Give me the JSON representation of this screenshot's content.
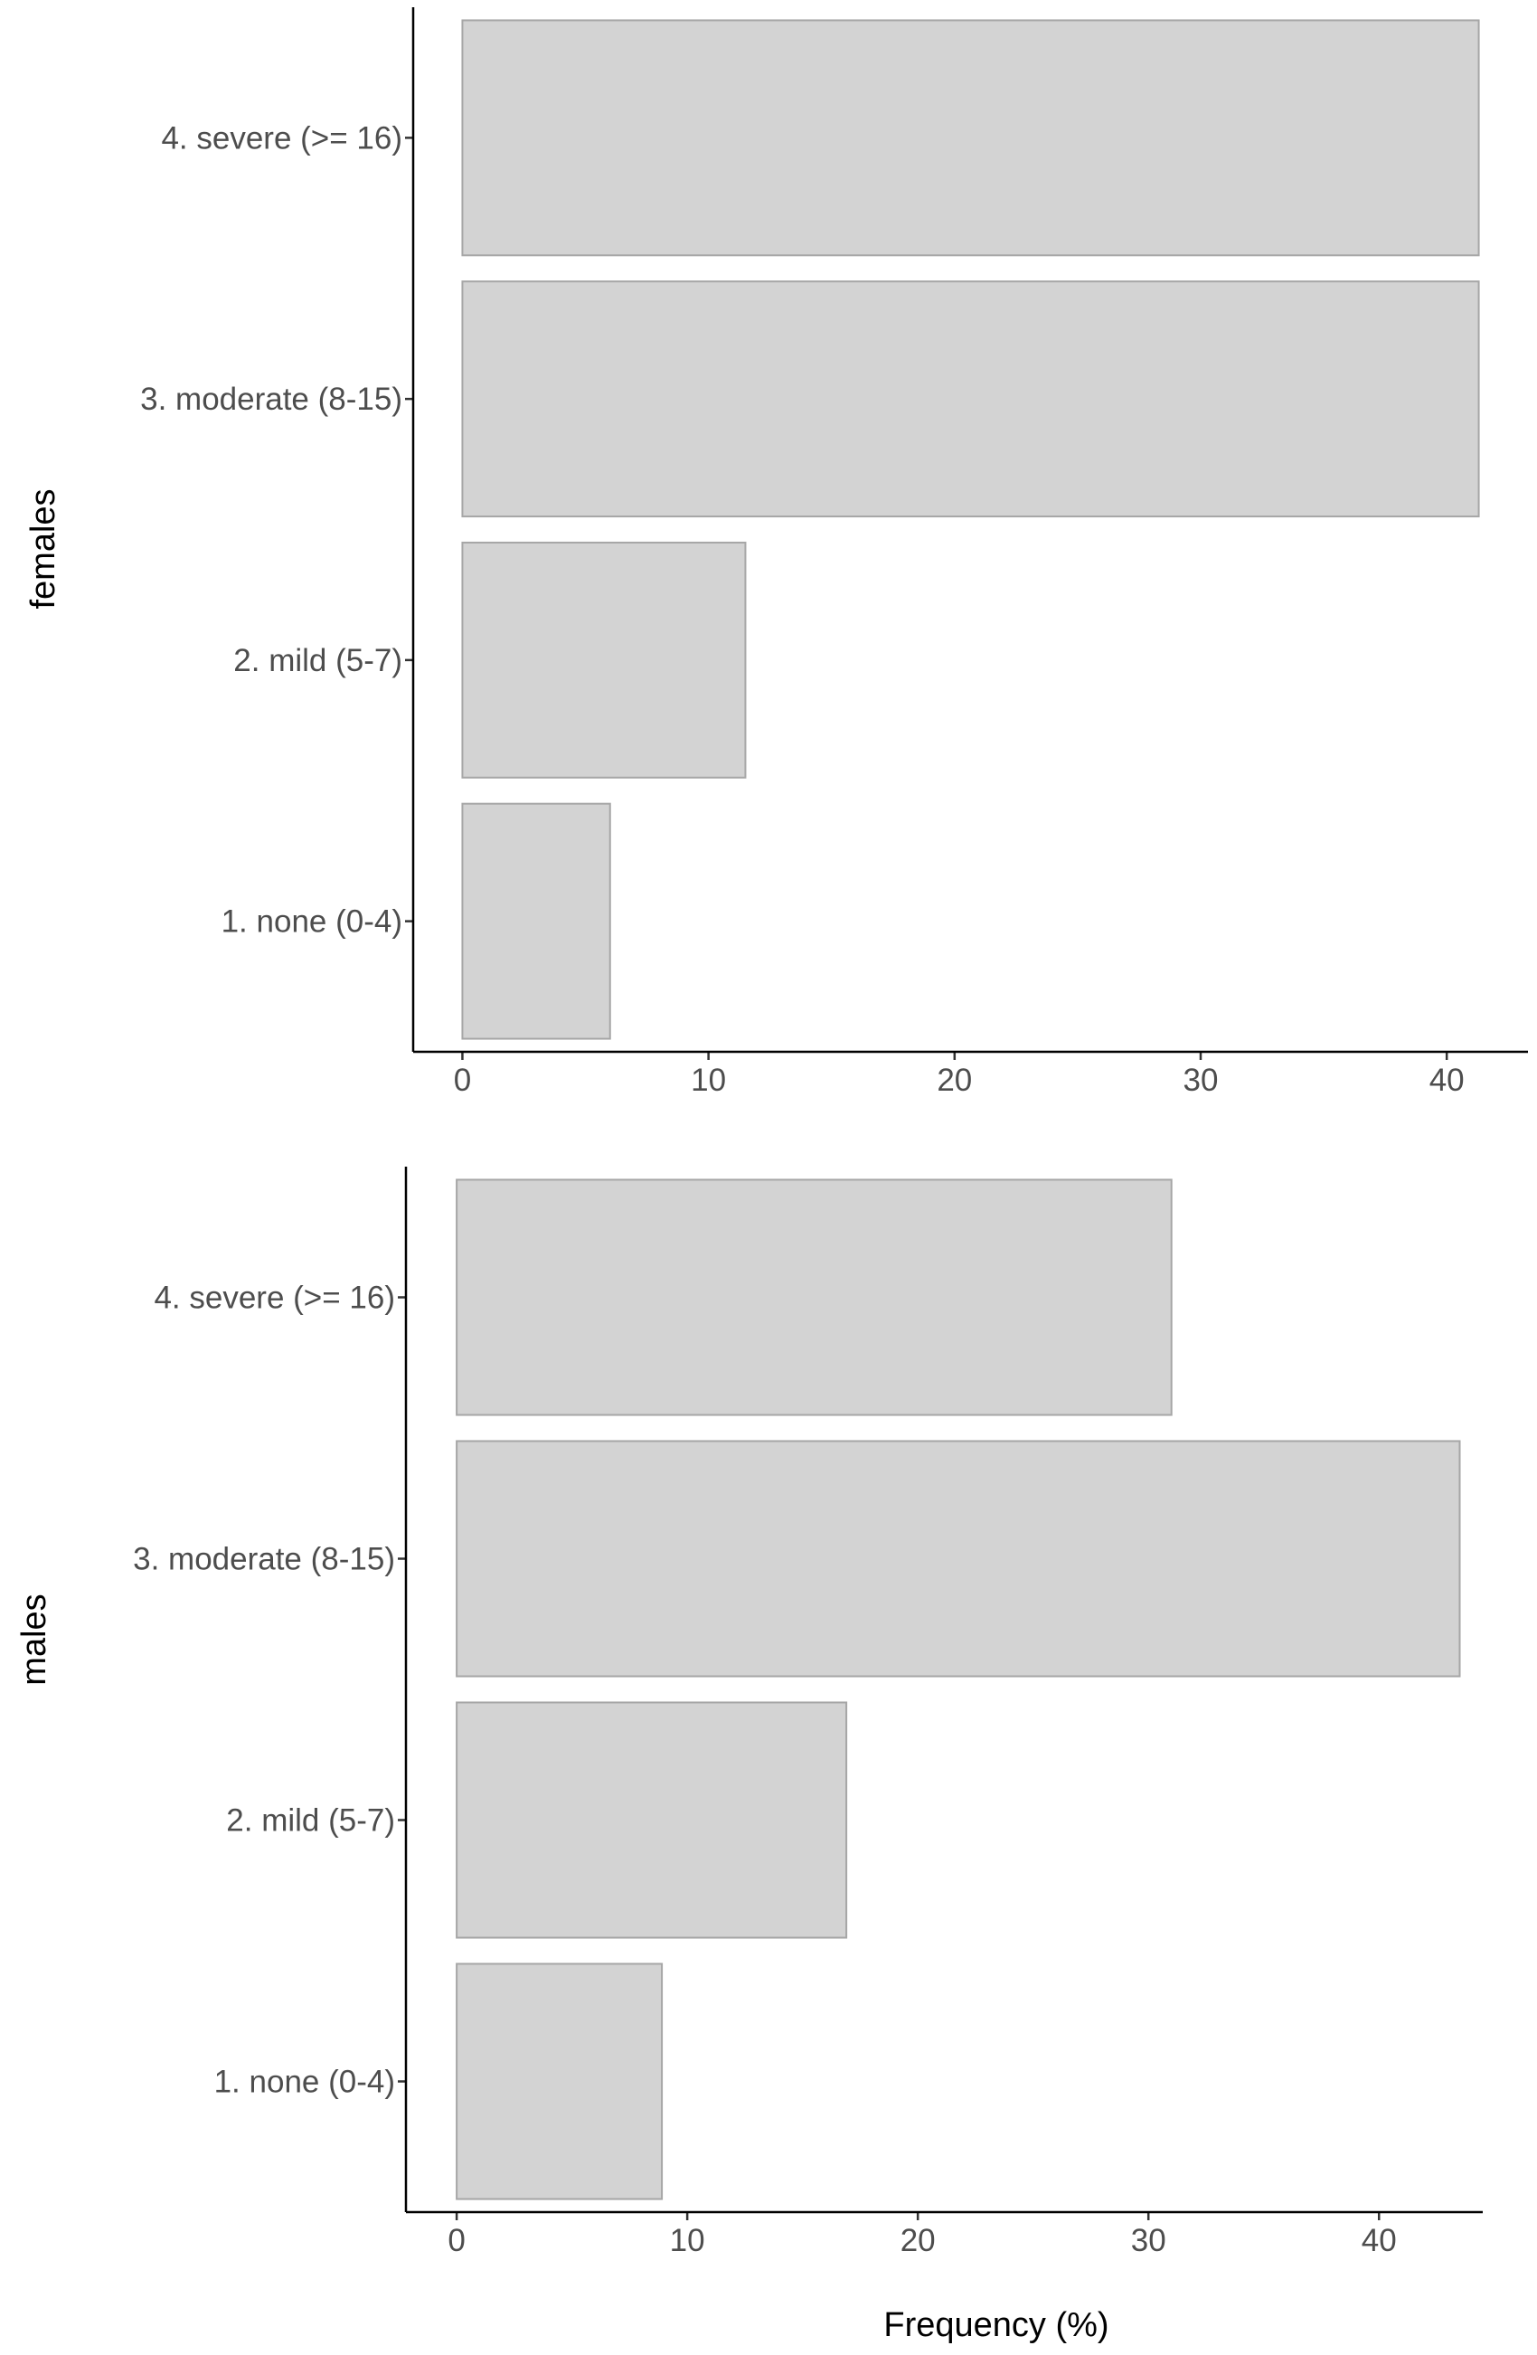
{
  "chart_data": [
    {
      "type": "bar",
      "orientation": "horizontal",
      "ylabel": "females",
      "xlabel": "",
      "categories": [
        "1. none (0-4)",
        "2. mild (5-7)",
        "3. moderate (8-15)",
        "4. severe (>= 16)"
      ],
      "values": [
        6.0,
        11.5,
        41.3,
        41.3
      ],
      "xlim": [
        -2,
        43.3
      ],
      "xticks": [
        0,
        10,
        20,
        30,
        40
      ],
      "xtick_labels": [
        "0",
        "10",
        "20",
        "30",
        "40"
      ],
      "grid": false,
      "colors": {
        "bar_fill": "#d3d3d3",
        "bar_stroke": "#a6a6a6"
      }
    },
    {
      "type": "bar",
      "orientation": "horizontal",
      "ylabel": "males",
      "xlabel": "Frequency (%)",
      "categories": [
        "1. none (0-4)",
        "2. mild (5-7)",
        "3. moderate (8-15)",
        "4. severe (>= 16)"
      ],
      "values": [
        8.9,
        16.9,
        43.5,
        31.0
      ],
      "xlim": [
        -2.2,
        44.5
      ],
      "xticks": [
        0,
        10,
        20,
        30,
        40
      ],
      "xtick_labels": [
        "0",
        "10",
        "20",
        "30",
        "40"
      ],
      "grid": false,
      "colors": {
        "bar_fill": "#d3d3d3",
        "bar_stroke": "#a6a6a6"
      }
    }
  ]
}
